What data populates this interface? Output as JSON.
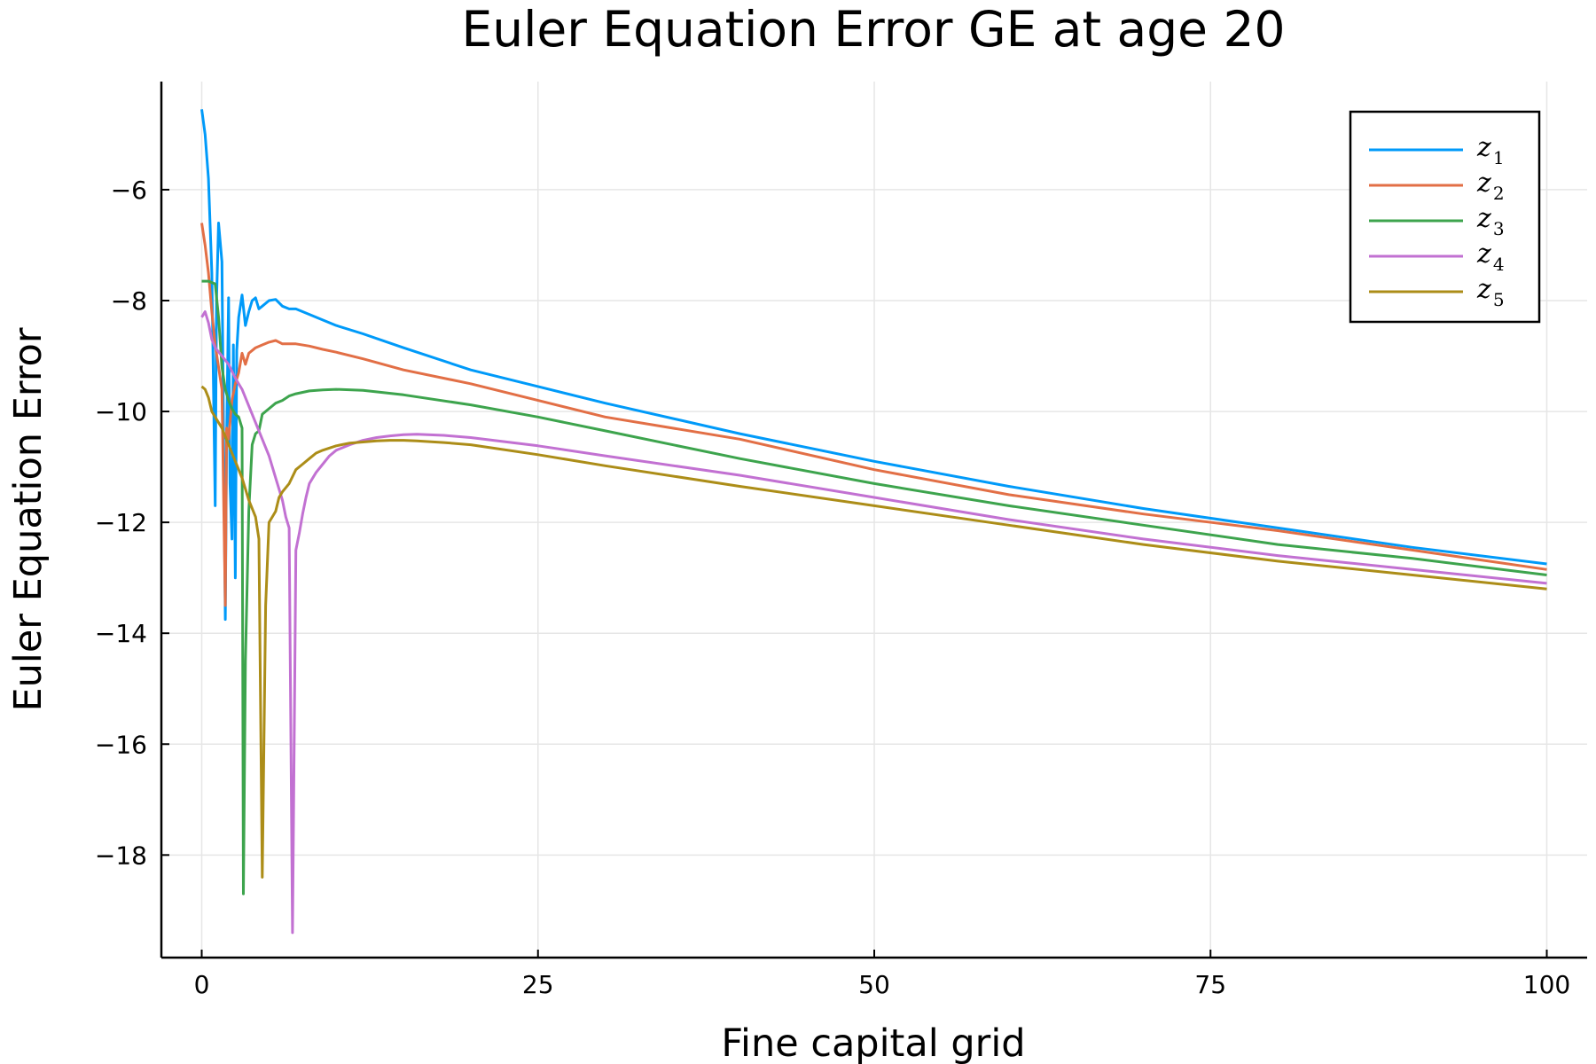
{
  "chart_data": {
    "type": "line",
    "title": "Euler Equation Error GE at age 20",
    "xlabel": "Fine capital grid",
    "ylabel": "Euler Equation Error",
    "xlim": [
      -3,
      103
    ],
    "ylim": [
      -19.85,
      -4.05
    ],
    "xticks": [
      0,
      25,
      50,
      75,
      100
    ],
    "xtick_labels": [
      "0",
      "25",
      "50",
      "75",
      "100"
    ],
    "yticks": [
      -6,
      -8,
      -10,
      -12,
      -14,
      -16,
      -18
    ],
    "ytick_labels": [
      "−6",
      "−8",
      "−10",
      "−12",
      "−14",
      "−16",
      "−18"
    ],
    "grid": true,
    "legend": "top-right",
    "series": [
      {
        "name": "z",
        "sub": "1",
        "color": "#009af9",
        "x": [
          0,
          0.25,
          0.5,
          0.75,
          1.0,
          1.1,
          1.25,
          1.5,
          1.75,
          1.85,
          2.0,
          2.1,
          2.25,
          2.35,
          2.5,
          2.6,
          2.75,
          3.0,
          3.25,
          3.5,
          3.75,
          4.0,
          4.25,
          4.5,
          5.0,
          5.5,
          6.0,
          6.5,
          7.0,
          8.0,
          9.0,
          10.0,
          12.0,
          15.0,
          20.0,
          25.0,
          30.0,
          40.0,
          50.0,
          60.0,
          70.0,
          80.0,
          90.0,
          100.0
        ],
        "y": [
          -4.55,
          -5.0,
          -5.8,
          -7.5,
          -11.7,
          -8.0,
          -6.6,
          -7.3,
          -13.75,
          -10.5,
          -7.95,
          -11.3,
          -12.3,
          -8.8,
          -13.0,
          -8.9,
          -8.3,
          -7.9,
          -8.45,
          -8.2,
          -8.0,
          -7.95,
          -8.15,
          -8.1,
          -8.0,
          -7.98,
          -8.1,
          -8.15,
          -8.15,
          -8.25,
          -8.35,
          -8.45,
          -8.6,
          -8.85,
          -9.25,
          -9.55,
          -9.85,
          -10.4,
          -10.9,
          -11.35,
          -11.75,
          -12.1,
          -12.45,
          -12.75
        ]
      },
      {
        "name": "z",
        "sub": "2",
        "color": "#e26f46",
        "x": [
          0,
          0.25,
          0.5,
          0.75,
          1.0,
          1.25,
          1.5,
          1.75,
          1.85,
          2.0,
          2.25,
          2.5,
          2.75,
          3.0,
          3.25,
          3.5,
          3.75,
          4.0,
          4.5,
          5.0,
          5.5,
          6.0,
          7.0,
          8.0,
          9.0,
          10.0,
          12.0,
          15.0,
          20.0,
          25.0,
          30.0,
          40.0,
          50.0,
          60.0,
          70.0,
          80.0,
          90.0,
          100.0
        ],
        "y": [
          -6.6,
          -7.0,
          -7.5,
          -8.2,
          -8.8,
          -9.2,
          -9.6,
          -13.5,
          -10.3,
          -10.5,
          -9.8,
          -9.5,
          -9.3,
          -8.95,
          -9.15,
          -8.95,
          -8.9,
          -8.85,
          -8.8,
          -8.75,
          -8.72,
          -8.78,
          -8.78,
          -8.82,
          -8.88,
          -8.93,
          -9.05,
          -9.25,
          -9.5,
          -9.8,
          -10.1,
          -10.5,
          -11.05,
          -11.5,
          -11.85,
          -12.15,
          -12.5,
          -12.85
        ]
      },
      {
        "name": "z",
        "sub": "3",
        "color": "#3da44d",
        "x": [
          0,
          0.5,
          1.0,
          1.25,
          1.5,
          1.75,
          2.0,
          2.25,
          2.5,
          2.75,
          3.0,
          3.1,
          3.25,
          3.5,
          3.75,
          4.0,
          4.25,
          4.5,
          5.0,
          5.5,
          6.0,
          6.5,
          7.0,
          8.0,
          9.0,
          10.0,
          12.0,
          15.0,
          20.0,
          25.0,
          30.0,
          40.0,
          50.0,
          60.0,
          70.0,
          80.0,
          90.0,
          100.0
        ],
        "y": [
          -7.65,
          -7.65,
          -7.7,
          -8.3,
          -9.2,
          -9.6,
          -9.8,
          -9.95,
          -10.05,
          -10.1,
          -10.3,
          -18.7,
          -14.5,
          -11.8,
          -10.6,
          -10.4,
          -10.35,
          -10.05,
          -9.95,
          -9.85,
          -9.8,
          -9.72,
          -9.68,
          -9.63,
          -9.61,
          -9.6,
          -9.62,
          -9.7,
          -9.88,
          -10.1,
          -10.35,
          -10.85,
          -11.3,
          -11.7,
          -12.05,
          -12.4,
          -12.65,
          -12.95
        ]
      },
      {
        "name": "z",
        "sub": "4",
        "color": "#c271d2",
        "x": [
          0,
          0.25,
          0.5,
          0.75,
          1.0,
          1.5,
          2.0,
          2.5,
          3.0,
          3.5,
          4.0,
          4.5,
          5.0,
          5.5,
          6.0,
          6.25,
          6.5,
          6.75,
          7.0,
          7.25,
          7.5,
          7.75,
          8.0,
          8.5,
          9.0,
          9.5,
          10.0,
          11.0,
          12.0,
          13.0,
          14.0,
          15.0,
          16.0,
          18.0,
          20.0,
          25.0,
          30.0,
          40.0,
          50.0,
          60.0,
          70.0,
          80.0,
          90.0,
          100.0
        ],
        "y": [
          -8.3,
          -8.2,
          -8.4,
          -8.7,
          -8.85,
          -9.0,
          -9.15,
          -9.4,
          -9.6,
          -9.9,
          -10.2,
          -10.5,
          -10.8,
          -11.2,
          -11.6,
          -11.9,
          -12.1,
          -19.4,
          -12.5,
          -12.2,
          -11.85,
          -11.55,
          -11.3,
          -11.1,
          -10.95,
          -10.8,
          -10.7,
          -10.6,
          -10.52,
          -10.47,
          -10.44,
          -10.42,
          -10.41,
          -10.43,
          -10.47,
          -10.62,
          -10.8,
          -11.15,
          -11.55,
          -11.95,
          -12.3,
          -12.6,
          -12.85,
          -13.1
        ]
      },
      {
        "name": "z",
        "sub": "5",
        "color": "#ac8d18",
        "x": [
          0,
          0.25,
          0.5,
          0.75,
          1.0,
          1.5,
          2.0,
          2.5,
          3.0,
          3.5,
          4.0,
          4.25,
          4.5,
          4.75,
          5.0,
          5.25,
          5.5,
          5.75,
          6.0,
          6.5,
          7.0,
          7.5,
          8.0,
          8.5,
          9.0,
          10.0,
          11.0,
          12.0,
          13.0,
          14.0,
          15.0,
          16.0,
          18.0,
          20.0,
          25.0,
          30.0,
          40.0,
          50.0,
          60.0,
          70.0,
          80.0,
          90.0,
          100.0
        ],
        "y": [
          -9.55,
          -9.6,
          -9.75,
          -10.0,
          -10.1,
          -10.3,
          -10.6,
          -10.9,
          -11.2,
          -11.6,
          -11.9,
          -12.3,
          -18.4,
          -13.5,
          -12.0,
          -11.9,
          -11.8,
          -11.55,
          -11.45,
          -11.3,
          -11.05,
          -10.95,
          -10.85,
          -10.75,
          -10.7,
          -10.62,
          -10.57,
          -10.55,
          -10.53,
          -10.52,
          -10.52,
          -10.53,
          -10.56,
          -10.6,
          -10.78,
          -10.98,
          -11.35,
          -11.7,
          -12.05,
          -12.4,
          -12.7,
          -12.95,
          -13.2
        ]
      }
    ]
  }
}
